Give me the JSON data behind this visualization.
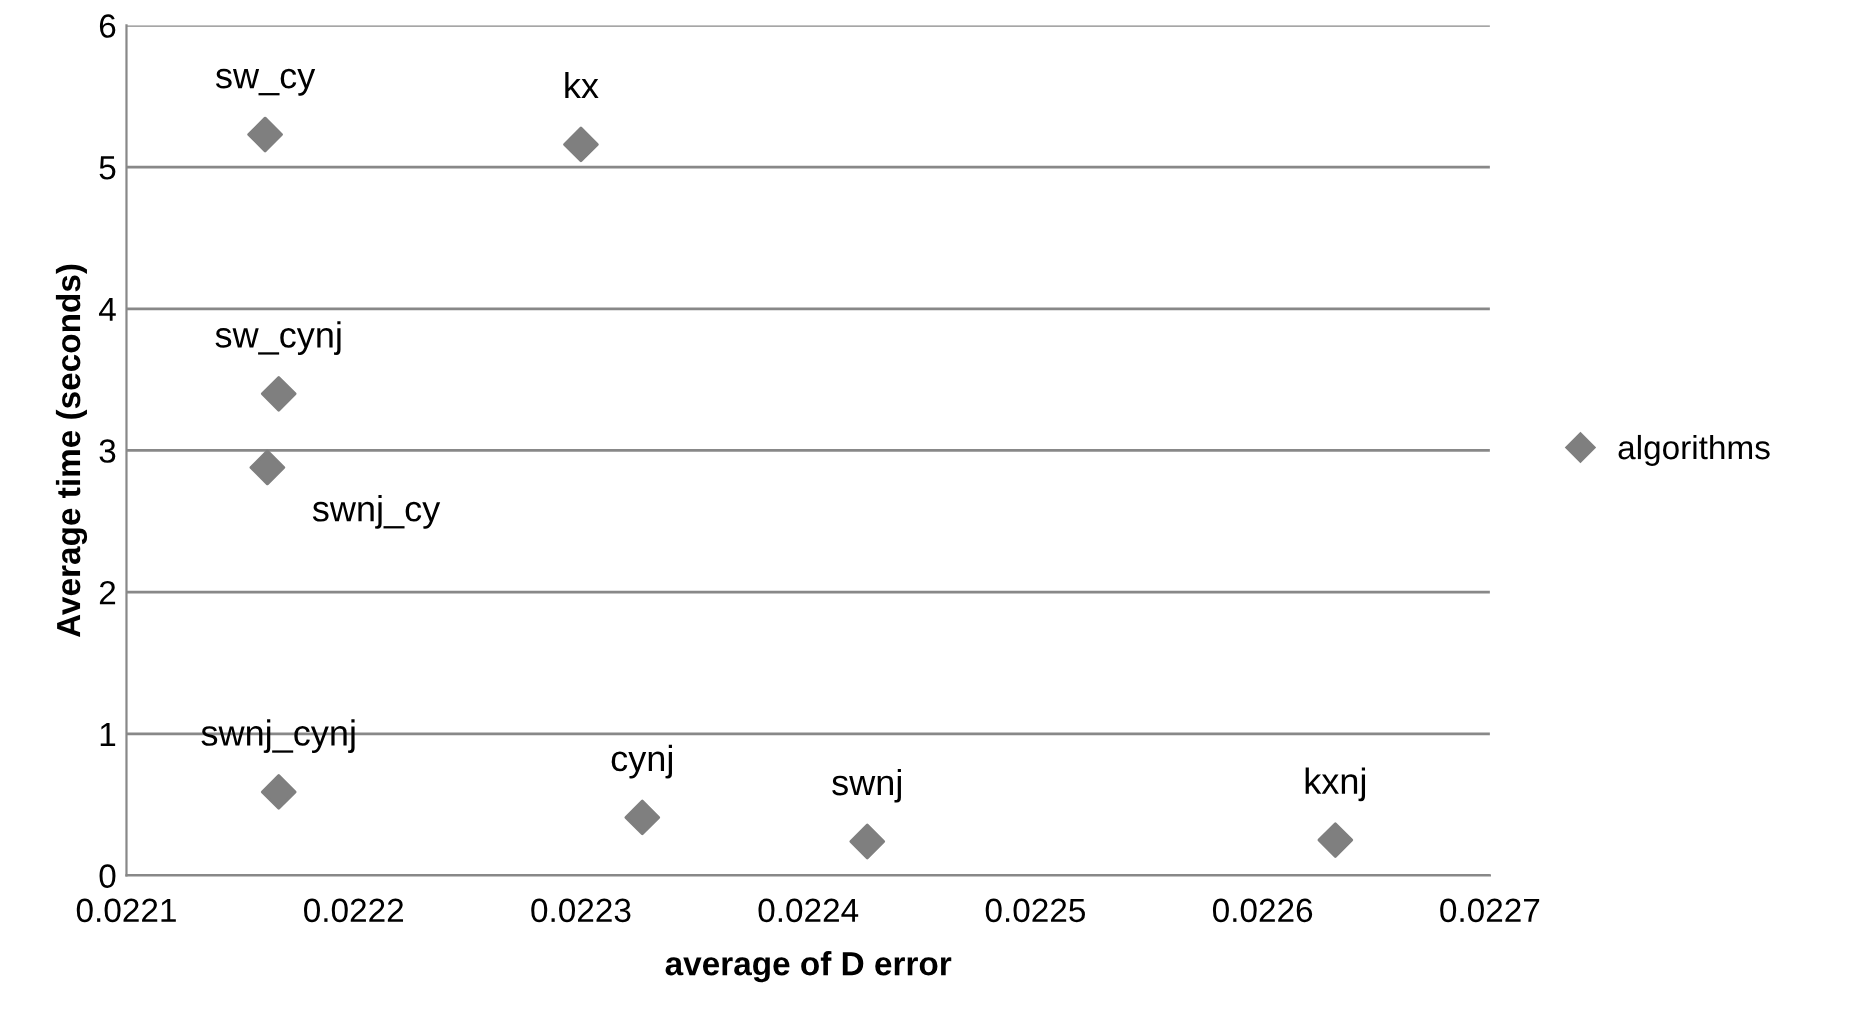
{
  "chart_data": {
    "type": "scatter",
    "xlabel": "average of D error",
    "ylabel": "Average time (seconds)",
    "series": [
      {
        "name": "algorithms",
        "color": "#7f7f7f",
        "x": [
          0.022161,
          0.0223,
          0.022167,
          0.022162,
          0.022167,
          0.022327,
          0.022426,
          0.022632
        ],
        "values": [
          5.23,
          5.16,
          3.4,
          2.88,
          0.59,
          0.41,
          0.24,
          0.25
        ]
      }
    ],
    "annotations": [
      {
        "text": "sw_cy",
        "x": 0.022161,
        "y": 5.23
      },
      {
        "text": "kx",
        "x": 0.0223,
        "y": 5.16
      },
      {
        "text": "sw_cynj",
        "x": 0.022167,
        "y": 3.4
      },
      {
        "text": "swnj_cy",
        "x": 0.022162,
        "y": 2.88
      },
      {
        "text": "swnj_cynj",
        "x": 0.022167,
        "y": 0.59
      },
      {
        "text": "cynj",
        "x": 0.022327,
        "y": 0.41
      },
      {
        "text": "swnj",
        "x": 0.022426,
        "y": 0.24
      },
      {
        "text": "kxnj",
        "x": 0.022632,
        "y": 0.25
      }
    ],
    "xlim": [
      0.0221,
      0.0227
    ],
    "xticks": [
      0.0221,
      0.0222,
      0.0223,
      0.0224,
      0.0225,
      0.0226,
      0.0227
    ],
    "ylim": [
      0,
      6
    ],
    "yticks": [
      0,
      1,
      2,
      3,
      4,
      5,
      6
    ],
    "grid": "y",
    "legend": "right",
    "marker": "diamond"
  }
}
